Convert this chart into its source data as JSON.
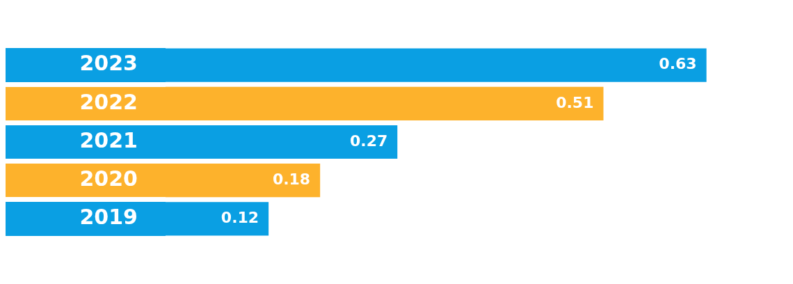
{
  "chart_data": {
    "type": "bar",
    "orientation": "horizontal",
    "categories": [
      "2023",
      "2022",
      "2021",
      "2020",
      "2019"
    ],
    "values": [
      0.63,
      0.51,
      0.27,
      0.18,
      0.12
    ],
    "colors": [
      "#0a9fe3",
      "#fdb22c",
      "#0a9fe3",
      "#fdb22c",
      "#0a9fe3"
    ],
    "data_labels": true,
    "grid": false,
    "legend": false
  }
}
